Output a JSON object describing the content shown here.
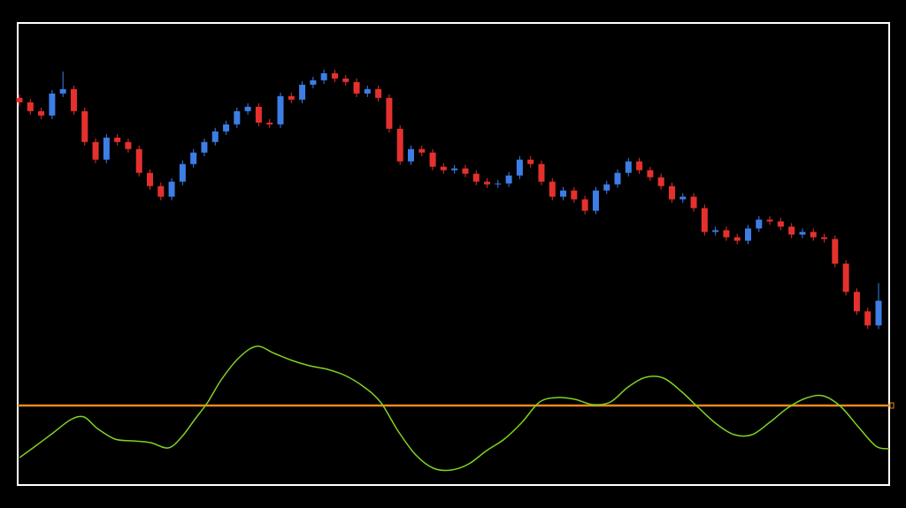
{
  "chart_data": [
    {
      "type": "candlestick",
      "up_color": "#3d7ee6",
      "down_color": "#e5312e",
      "ylim": [
        26,
        550
      ],
      "open": [
        465,
        460,
        450,
        445,
        470,
        475,
        450,
        415,
        395,
        420,
        415,
        407,
        380,
        365,
        353,
        370,
        390,
        403,
        415,
        427,
        435,
        450,
        455,
        437,
        435,
        467,
        463,
        480,
        485,
        493,
        487,
        483,
        470,
        475,
        465,
        430,
        393,
        407,
        403,
        387,
        383,
        385,
        379,
        370,
        367,
        368,
        377,
        395,
        390,
        370,
        353,
        360,
        350,
        337,
        360,
        367,
        380,
        393,
        383,
        375,
        365,
        350,
        353,
        340,
        313,
        315,
        307,
        303,
        317,
        327,
        325,
        319,
        310,
        313,
        307,
        305,
        277,
        245,
        223,
        207
      ],
      "high": [
        469,
        464,
        454,
        474,
        495,
        479,
        454,
        419,
        424,
        424,
        419,
        411,
        384,
        369,
        374,
        394,
        407,
        419,
        431,
        439,
        454,
        459,
        459,
        441,
        471,
        471,
        484,
        489,
        497,
        497,
        491,
        487,
        479,
        479,
        469,
        434,
        411,
        411,
        407,
        391,
        389,
        389,
        383,
        374,
        372,
        381,
        399,
        399,
        394,
        374,
        364,
        364,
        354,
        364,
        371,
        384,
        397,
        397,
        387,
        379,
        369,
        357,
        357,
        344,
        319,
        319,
        311,
        321,
        331,
        331,
        329,
        323,
        317,
        317,
        311,
        309,
        281,
        249,
        227,
        255
      ],
      "low": [
        456,
        446,
        441,
        441,
        466,
        446,
        411,
        391,
        391,
        411,
        403,
        376,
        361,
        349,
        349,
        366,
        386,
        399,
        411,
        423,
        431,
        446,
        433,
        431,
        431,
        459,
        459,
        476,
        481,
        483,
        479,
        466,
        466,
        461,
        426,
        389,
        389,
        399,
        383,
        379,
        379,
        375,
        366,
        363,
        363,
        364,
        373,
        386,
        366,
        349,
        349,
        346,
        333,
        333,
        356,
        363,
        376,
        379,
        371,
        361,
        346,
        346,
        336,
        309,
        309,
        303,
        299,
        299,
        313,
        321,
        315,
        306,
        306,
        303,
        301,
        273,
        241,
        219,
        203,
        203
      ],
      "close": [
        460,
        450,
        445,
        470,
        475,
        450,
        415,
        395,
        420,
        415,
        407,
        380,
        365,
        353,
        370,
        390,
        403,
        415,
        427,
        435,
        450,
        455,
        437,
        435,
        467,
        463,
        480,
        485,
        493,
        487,
        483,
        470,
        475,
        465,
        430,
        393,
        407,
        403,
        387,
        383,
        385,
        379,
        370,
        367,
        368,
        377,
        395,
        390,
        370,
        353,
        360,
        350,
        337,
        360,
        367,
        380,
        393,
        383,
        375,
        365,
        350,
        353,
        340,
        313,
        315,
        307,
        303,
        317,
        327,
        325,
        319,
        310,
        313,
        307,
        305,
        277,
        245,
        223,
        207,
        235
      ]
    },
    {
      "type": "line",
      "color": "#7ed321",
      "level": 0,
      "level_color": "#e8891c",
      "xlim": [
        20,
        1005
      ],
      "ylim": [
        -85,
        85
      ],
      "x": [
        22,
        40,
        60,
        80,
        95,
        110,
        130,
        150,
        170,
        190,
        205,
        220,
        235,
        250,
        270,
        290,
        310,
        330,
        350,
        370,
        390,
        410,
        430,
        450,
        470,
        490,
        510,
        530,
        550,
        570,
        590,
        610,
        630,
        650,
        670,
        690,
        710,
        730,
        750,
        770,
        790,
        810,
        830,
        850,
        870,
        890,
        910,
        930,
        950,
        970,
        990,
        1005
      ],
      "values": [
        -59,
        -46,
        -31,
        -16,
        -13,
        -26,
        -38,
        -40,
        -42,
        -48,
        -36,
        -16,
        4,
        29,
        54,
        67,
        59,
        51,
        45,
        41,
        34,
        22,
        4,
        -29,
        -56,
        -71,
        -73,
        -66,
        -51,
        -38,
        -19,
        4,
        9,
        7,
        1,
        4,
        21,
        32,
        31,
        16,
        -3,
        -21,
        -33,
        -33,
        -19,
        -3,
        8,
        11,
        -1,
        -24,
        -46,
        -49
      ]
    }
  ]
}
